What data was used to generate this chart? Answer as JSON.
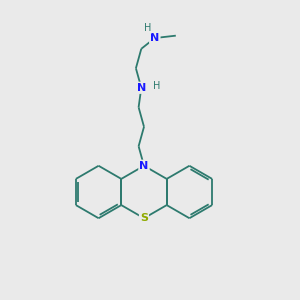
{
  "bg_color": "#eaeaea",
  "bond_color": "#2d7a6e",
  "N_color": "#1a1aff",
  "S_color": "#8faa00",
  "H_color": "#2d7a6e",
  "font_size_N": 8,
  "font_size_S": 8,
  "font_size_H": 7,
  "line_width": 1.3,
  "figsize": [
    3.0,
    3.0
  ],
  "dpi": 100,
  "xlim": [
    0,
    10
  ],
  "ylim": [
    0,
    10
  ],
  "hex_r": 0.95,
  "step": 0.65
}
